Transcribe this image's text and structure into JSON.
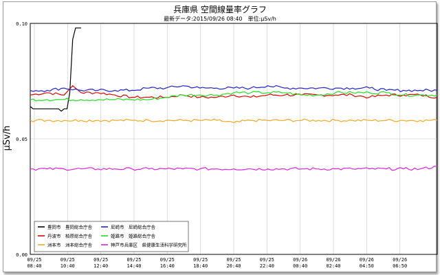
{
  "chart_data": {
    "type": "line",
    "title": "兵庫県 空間線量率グラフ",
    "subtitle": "最新データ:2015/09/26 08:40　単位:μSv/h",
    "ylabel": "μSv/h",
    "xlabel": "",
    "ylim": [
      0.0,
      0.1
    ],
    "y_ticks": [
      "0.10",
      "0.05",
      "0.00"
    ],
    "x_tick_labels": [
      [
        "09/25",
        "08:40"
      ],
      [
        "09/25",
        "10:40"
      ],
      [
        "09/25",
        "12:40"
      ],
      [
        "09/25",
        "14:40"
      ],
      [
        "09/25",
        "16:40"
      ],
      [
        "09/25",
        "18:40"
      ],
      [
        "09/25",
        "20:40"
      ],
      [
        "09/25",
        "22:40"
      ],
      [
        "09/26",
        "00:40"
      ],
      [
        "09/26",
        "02:40"
      ],
      [
        "09/26",
        "04:50"
      ],
      [
        "09/26",
        "06:50"
      ]
    ],
    "x_range_hours": [
      0,
      24
    ],
    "grid": true,
    "legend_placement": "bottom-left",
    "series": [
      {
        "name": "豊岡市　豊岡総合庁舎",
        "color": "#000000",
        "x_hours": [
          0.0,
          0.17,
          0.33,
          0.5,
          0.67,
          0.83,
          1.0,
          1.17,
          1.33,
          1.5,
          1.67,
          1.83,
          2.0,
          2.17,
          2.33,
          2.5,
          2.67,
          2.83,
          3.0
        ],
        "values": [
          0.064,
          0.063,
          0.063,
          0.063,
          0.063,
          0.063,
          0.063,
          0.063,
          0.063,
          0.063,
          0.063,
          0.062,
          0.063,
          0.063,
          0.07,
          0.093,
          0.098,
          0.098,
          0.098
        ]
      },
      {
        "name": "丹波市　柏原総合庁舎",
        "color": "#dd0000",
        "x_hours": [
          0,
          1,
          2,
          2.5,
          3,
          4,
          5,
          6,
          7,
          8,
          9,
          10,
          11,
          12,
          13,
          14,
          15,
          16,
          17,
          18,
          19,
          20,
          21,
          22,
          23,
          24
        ],
        "values": [
          0.069,
          0.07,
          0.069,
          0.073,
          0.07,
          0.07,
          0.069,
          0.068,
          0.068,
          0.068,
          0.069,
          0.068,
          0.068,
          0.069,
          0.068,
          0.069,
          0.069,
          0.069,
          0.069,
          0.069,
          0.069,
          0.068,
          0.069,
          0.069,
          0.069,
          0.068
        ]
      },
      {
        "name": "洲本市　洲本総合庁舎",
        "color": "#f5a623",
        "x_hours": [
          0,
          1,
          2,
          3,
          4,
          5,
          6,
          7,
          8,
          9,
          10,
          11,
          12,
          13,
          14,
          15,
          16,
          17,
          18,
          19,
          20,
          21,
          22,
          23,
          24
        ],
        "values": [
          0.058,
          0.058,
          0.058,
          0.058,
          0.058,
          0.058,
          0.058,
          0.058,
          0.058,
          0.058,
          0.058,
          0.058,
          0.057,
          0.058,
          0.058,
          0.058,
          0.058,
          0.058,
          0.058,
          0.058,
          0.058,
          0.058,
          0.058,
          0.058,
          0.058
        ]
      },
      {
        "name": "尼崎市　尼崎総合庁舎",
        "color": "#2222cc",
        "x_hours": [
          0,
          1,
          2,
          3,
          4,
          5,
          6,
          7,
          8,
          9,
          10,
          11,
          12,
          13,
          14,
          15,
          16,
          17,
          18,
          19,
          20,
          21,
          22,
          23,
          24
        ],
        "values": [
          0.071,
          0.071,
          0.072,
          0.071,
          0.071,
          0.071,
          0.071,
          0.072,
          0.072,
          0.073,
          0.072,
          0.072,
          0.072,
          0.072,
          0.073,
          0.072,
          0.072,
          0.072,
          0.072,
          0.072,
          0.072,
          0.071,
          0.071,
          0.071,
          0.071
        ]
      },
      {
        "name": "姫路市　姫路総合庁舎",
        "color": "#22dd22",
        "x_hours": [
          0,
          1,
          2,
          3,
          4,
          5,
          6,
          7,
          8,
          9,
          10,
          11,
          12,
          13,
          14,
          15,
          16,
          17,
          18,
          19,
          20,
          21,
          22,
          23,
          24
        ],
        "values": [
          0.067,
          0.067,
          0.067,
          0.067,
          0.067,
          0.067,
          0.067,
          0.067,
          0.068,
          0.069,
          0.069,
          0.069,
          0.07,
          0.07,
          0.07,
          0.07,
          0.069,
          0.069,
          0.07,
          0.07,
          0.07,
          0.07,
          0.069,
          0.069,
          0.069
        ]
      },
      {
        "name": "神戸市兵庫区　県健康生活科学研究所",
        "color": "#dd22dd",
        "x_hours": [
          0,
          1,
          2,
          3,
          4,
          5,
          6,
          7,
          8,
          9,
          10,
          11,
          12,
          13,
          14,
          15,
          16,
          17,
          18,
          19,
          20,
          21,
          22,
          23,
          24
        ],
        "values": [
          0.037,
          0.037,
          0.037,
          0.037,
          0.037,
          0.037,
          0.037,
          0.037,
          0.037,
          0.037,
          0.037,
          0.037,
          0.037,
          0.037,
          0.037,
          0.037,
          0.037,
          0.037,
          0.037,
          0.037,
          0.037,
          0.037,
          0.037,
          0.037,
          0.038
        ]
      }
    ]
  }
}
